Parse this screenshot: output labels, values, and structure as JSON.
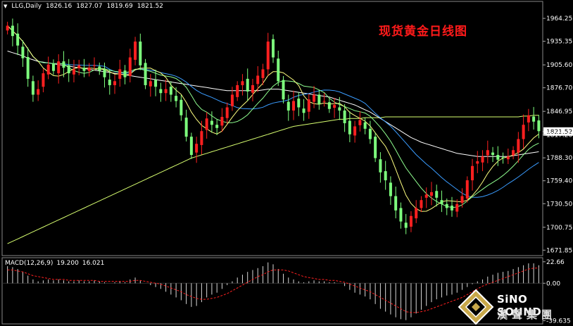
{
  "header": {
    "symbol": "LLG,Daily",
    "open": "1826.16",
    "high": "1827.07",
    "low": "1819.69",
    "close": "1821.52"
  },
  "title": "现货黄金日线图",
  "macd": {
    "label": "MACD(12,26,9)",
    "value1": "19.200",
    "value2": "16.021",
    "ticks": [
      "22.66",
      "0.00",
      "-39.635"
    ]
  },
  "logo": {
    "en": "SiNO SOUND",
    "zh": "漢聲集團"
  },
  "colors": {
    "bull": "#ff2020",
    "bear": "#7dff7d",
    "ma_white": "#ffffff",
    "ma_yellow": "#ffff80",
    "ma_green": "#90ff90",
    "ma_blue": "#3a9cff",
    "ma_lightyellow": "#d8ff70",
    "macd_signal": "#ff2020",
    "title": "#ff1a1a"
  },
  "chart_data": {
    "type": "candlestick",
    "timeframe": "Daily",
    "ylim": [
      1665,
      1975
    ],
    "y_ticks": [
      1964.25,
      1935.35,
      1905.6,
      1876.7,
      1846.95,
      1821.52,
      1817.2,
      1788.3,
      1759.4,
      1730.5,
      1700.75,
      1671.85
    ],
    "price_ticks": [
      "1964.25",
      "1935.35",
      "1905.60",
      "1876.70",
      "1846.95",
      "1821.52",
      "1817.20",
      "1788.30",
      "1759.40",
      "1730.50",
      "1700.75",
      "1671.85"
    ],
    "last_price": 1821.52,
    "closes": [
      1955,
      1942,
      1930,
      1914,
      1888,
      1868,
      1875,
      1895,
      1906,
      1898,
      1910,
      1902,
      1895,
      1900,
      1905,
      1898,
      1902,
      1905,
      1898,
      1890,
      1880,
      1885,
      1900,
      1890,
      1915,
      1935,
      1905,
      1880,
      1885,
      1878,
      1870,
      1875,
      1868,
      1860,
      1842,
      1815,
      1792,
      1806,
      1822,
      1838,
      1830,
      1826,
      1840,
      1852,
      1868,
      1880,
      1885,
      1872,
      1880,
      1892,
      1900,
      1935,
      1915,
      1885,
      1862,
      1848,
      1860,
      1852,
      1845,
      1862,
      1868,
      1856,
      1860,
      1850,
      1855,
      1848,
      1832,
      1818,
      1828,
      1836,
      1825,
      1812,
      1788,
      1770,
      1760,
      1740,
      1722,
      1708,
      1700,
      1715,
      1725,
      1735,
      1742,
      1745,
      1738,
      1730,
      1725,
      1722,
      1730,
      1740,
      1760,
      1778,
      1784,
      1790,
      1798,
      1792,
      1786,
      1788,
      1790,
      1798,
      1812,
      1830,
      1842,
      1834,
      1822
    ],
    "ma_slow_white": [
      1923,
      1921,
      1919,
      1917,
      1914,
      1912,
      1910,
      1909,
      1908,
      1907,
      1906,
      1905,
      1904,
      1903,
      1902,
      1901,
      1900,
      1899,
      1898,
      1897,
      1896,
      1895,
      1894,
      1893,
      1892,
      1891,
      1890,
      1889,
      1888,
      1887,
      1886,
      1885,
      1884,
      1883,
      1882,
      1881,
      1880,
      1879,
      1878,
      1877,
      1876,
      1875,
      1874,
      1873,
      1873,
      1873,
      1873,
      1873,
      1873,
      1873,
      1874,
      1875,
      1875,
      1875,
      1874,
      1873,
      1872,
      1871,
      1870,
      1869,
      1868,
      1867,
      1866,
      1865,
      1863,
      1861,
      1859,
      1857,
      1855,
      1852,
      1849,
      1846,
      1842,
      1838,
      1834,
      1830,
      1826,
      1822,
      1818,
      1814,
      1811,
      1808,
      1806,
      1804,
      1802,
      1800,
      1798,
      1796,
      1794,
      1793,
      1792,
      1791,
      1790,
      1790,
      1790,
      1790,
      1790,
      1790,
      1790,
      1791,
      1792,
      1793,
      1794,
      1795,
      1796
    ],
    "ma_long_lightyellow": [
      1680,
      1683,
      1686,
      1689,
      1692,
      1695,
      1698,
      1701,
      1704,
      1707,
      1710,
      1713,
      1716,
      1719,
      1722,
      1725,
      1728,
      1731,
      1734,
      1737,
      1740,
      1743,
      1746,
      1749,
      1752,
      1755,
      1758,
      1761,
      1764,
      1767,
      1770,
      1773,
      1776,
      1779,
      1782,
      1785,
      1788,
      1790,
      1792,
      1794,
      1796,
      1798,
      1800,
      1802,
      1804,
      1806,
      1808,
      1810,
      1812,
      1814,
      1816,
      1818,
      1820,
      1822,
      1824,
      1826,
      1828,
      1829,
      1830,
      1831,
      1832,
      1833,
      1834,
      1835,
      1836,
      1837,
      1837,
      1838,
      1838,
      1838,
      1839,
      1839,
      1839,
      1839,
      1840,
      1840,
      1840,
      1840,
      1840,
      1840,
      1840,
      1840,
      1840,
      1840,
      1840,
      1840,
      1840,
      1840,
      1840,
      1840,
      1840,
      1840,
      1840,
      1840,
      1840,
      1840,
      1840,
      1840,
      1840,
      1840,
      1840,
      1841,
      1841,
      1842,
      1842
    ],
    "macd_hist": [
      18,
      17,
      15,
      12,
      8,
      4,
      2,
      3,
      4,
      3,
      4,
      3,
      2,
      2,
      3,
      2,
      2,
      3,
      2,
      1,
      0,
      1,
      2,
      1,
      4,
      6,
      3,
      0,
      -2,
      -4,
      -6,
      -9,
      -12,
      -15,
      -18,
      -22,
      -25,
      -24,
      -20,
      -15,
      -12,
      -10,
      -6,
      -2,
      2,
      6,
      9,
      12,
      14,
      16,
      18,
      22,
      20,
      15,
      10,
      6,
      4,
      2,
      1,
      2,
      3,
      2,
      2,
      1,
      1,
      0,
      -3,
      -7,
      -10,
      -12,
      -14,
      -17,
      -22,
      -27,
      -30,
      -33,
      -36,
      -38,
      -39,
      -36,
      -32,
      -28,
      -24,
      -20,
      -17,
      -15,
      -13,
      -12,
      -10,
      -7,
      -4,
      -1,
      2,
      4,
      7,
      9,
      11,
      12,
      13,
      15,
      17,
      19,
      21,
      21,
      19
    ],
    "macd_signal": [
      14,
      14,
      13,
      12,
      10,
      8,
      7,
      6,
      5,
      4,
      4,
      4,
      3,
      3,
      3,
      3,
      3,
      3,
      2,
      2,
      2,
      2,
      2,
      2,
      2,
      3,
      3,
      2,
      1,
      0,
      -1,
      -3,
      -5,
      -7,
      -9,
      -12,
      -14,
      -16,
      -17,
      -17,
      -16,
      -15,
      -13,
      -11,
      -8,
      -5,
      -2,
      1,
      4,
      7,
      9,
      12,
      14,
      14,
      14,
      13,
      11,
      9,
      7,
      6,
      5,
      4,
      4,
      3,
      3,
      2,
      1,
      -1,
      -3,
      -5,
      -7,
      -9,
      -12,
      -15,
      -18,
      -21,
      -24,
      -27,
      -30,
      -31,
      -31,
      -30,
      -29,
      -27,
      -25,
      -23,
      -21,
      -19,
      -17,
      -15,
      -12,
      -9,
      -6,
      -3,
      -1,
      1,
      3,
      5,
      7,
      9,
      11,
      13,
      15,
      16,
      16
    ]
  }
}
